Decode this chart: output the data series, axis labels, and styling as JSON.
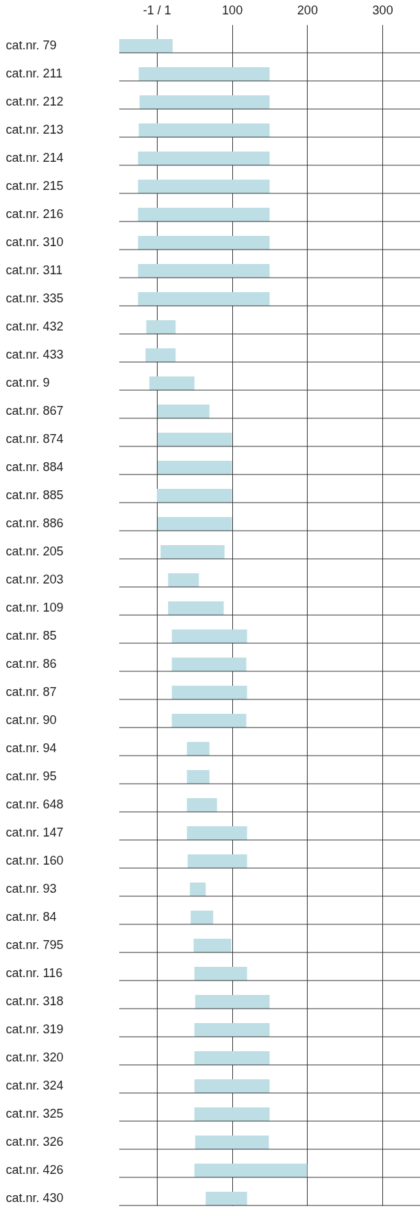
{
  "chart_data": {
    "type": "bar",
    "orientation": "horizontal",
    "grid": true,
    "categories": [
      "cat.nr. 79",
      "cat.nr. 211",
      "cat.nr. 212",
      "cat.nr. 213",
      "cat.nr. 214",
      "cat.nr. 215",
      "cat.nr. 216",
      "cat.nr. 310",
      "cat.nr. 311",
      "cat.nr. 335",
      "cat.nr. 432",
      "cat.nr. 433",
      "cat.nr. 9",
      "cat.nr. 867",
      "cat.nr. 874",
      "cat.nr. 884",
      "cat.nr. 885",
      "cat.nr. 886",
      "cat.nr. 205",
      "cat.nr. 203",
      "cat.nr. 109",
      "cat.nr. 85",
      "cat.nr. 86",
      "cat.nr. 87",
      "cat.nr. 90",
      "cat.nr. 94",
      "cat.nr. 95",
      "cat.nr. 648",
      "cat.nr. 147",
      "cat.nr. 160",
      "cat.nr. 93",
      "cat.nr. 84",
      "cat.nr. 795",
      "cat.nr. 116",
      "cat.nr. 318",
      "cat.nr. 319",
      "cat.nr. 320",
      "cat.nr. 324",
      "cat.nr. 325",
      "cat.nr. 326",
      "cat.nr. 426",
      "cat.nr. 430"
    ],
    "base": [
      -50,
      -24,
      -23,
      -24,
      -25,
      -25,
      -25,
      -25,
      -25,
      -25,
      -14,
      -15,
      -10,
      1,
      1,
      1,
      0,
      1,
      5,
      15,
      15,
      20,
      20,
      20,
      20,
      40,
      40,
      40,
      40,
      41,
      44,
      45,
      49,
      50,
      51,
      50,
      50,
      50,
      50,
      51,
      50,
      65
    ],
    "values": [
      71,
      174,
      173,
      174,
      175,
      175,
      175,
      175,
      175,
      175,
      39,
      40,
      60,
      69,
      99,
      99,
      100,
      99,
      85,
      41,
      74,
      100,
      99,
      100,
      99,
      30,
      30,
      40,
      80,
      79,
      21,
      30,
      50,
      70,
      99,
      100,
      100,
      100,
      100,
      98,
      150,
      55
    ],
    "color": "#bddee4",
    "xlim": [
      -50,
      350
    ],
    "xticks": [
      {
        "value": 0,
        "label": "-1 / 1"
      },
      100,
      200,
      300
    ]
  }
}
